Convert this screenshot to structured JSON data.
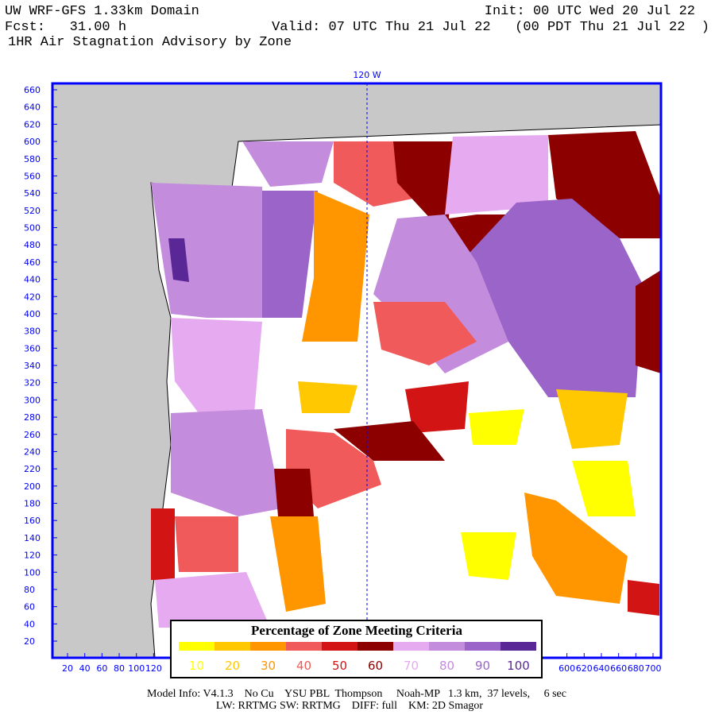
{
  "header": {
    "line1_left": "UW WRF-GFS 1.33km Domain",
    "line1_right": "Init: 00 UTC Wed 20 Jul 22",
    "line2_left": "Fcst:   31.00 h",
    "line2_right": "Valid: 07 UTC Thu 21 Jul 22   (00 PDT Thu 21 Jul 22  )",
    "line3": "1HR Air Stagnation Advisory by Zone"
  },
  "meridian_label": "120 W",
  "axes": {
    "yticks": [
      20,
      40,
      60,
      80,
      100,
      120,
      140,
      160,
      180,
      200,
      220,
      240,
      260,
      280,
      300,
      320,
      340,
      360,
      380,
      400,
      420,
      440,
      460,
      480,
      500,
      520,
      540,
      560,
      580,
      600,
      620,
      640,
      660
    ],
    "xticks": [
      20,
      40,
      60,
      80,
      100,
      120,
      600,
      620,
      640,
      660,
      680,
      700
    ]
  },
  "legend": {
    "title": "Percentage of Zone Meeting Criteria",
    "items": [
      {
        "label": 10,
        "color": "#ffff00"
      },
      {
        "label": 20,
        "color": "#ffc800"
      },
      {
        "label": 30,
        "color": "#ff9600"
      },
      {
        "label": 40,
        "color": "#f05a5a"
      },
      {
        "label": 50,
        "color": "#d21414"
      },
      {
        "label": 60,
        "color": "#8c0000"
      },
      {
        "label": 70,
        "color": "#e6aaf0"
      },
      {
        "label": 80,
        "color": "#c38cdc"
      },
      {
        "label": 90,
        "color": "#9a64c8"
      },
      {
        "label": 100,
        "color": "#5a2896"
      }
    ]
  },
  "footer": {
    "line1": "Model Info: V4.1.3    No Cu    YSU PBL  Thompson     Noah-MP   1.3 km,  37 levels,     6 sec",
    "line2": "LW: RRTMG SW: RRTMG    DIFF: full    KM: 2D Smagor"
  }
}
